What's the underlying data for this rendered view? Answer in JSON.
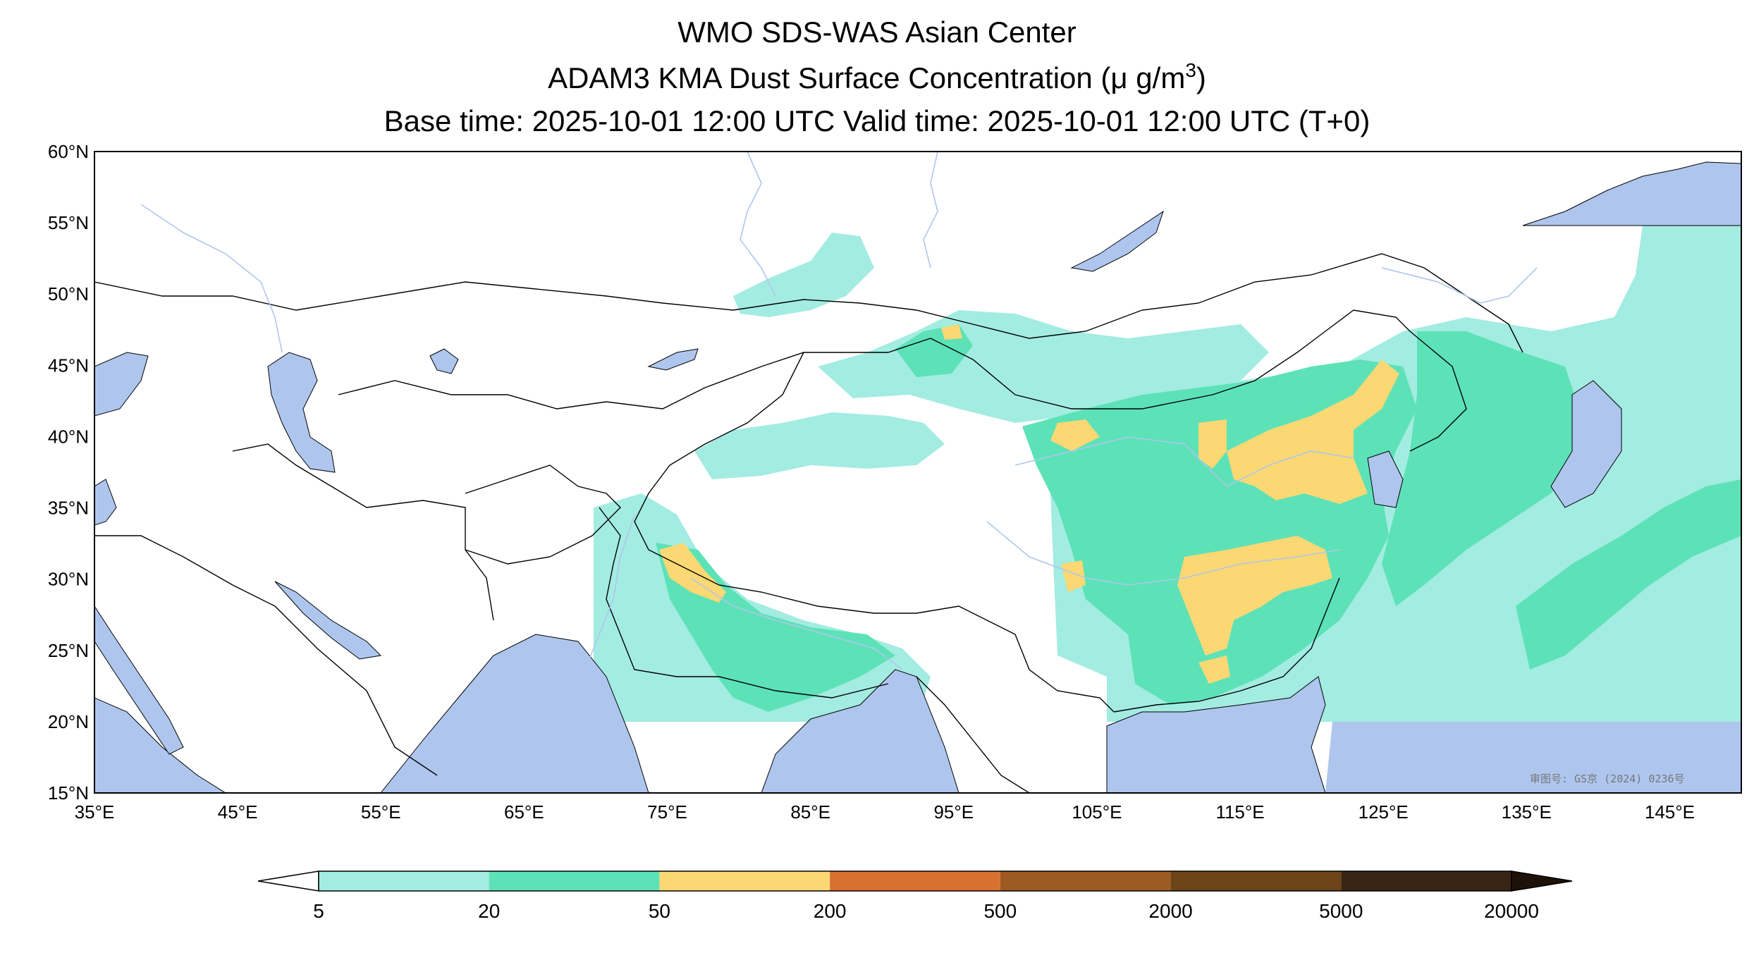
{
  "title": {
    "line1": "WMO SDS-WAS Asian Center",
    "line2_prefix": "ADAM3 KMA Dust Surface Concentration (",
    "line2_mu": "μ",
    "line2_unit": " g/m",
    "line2_sup": "3",
    "line2_suffix": ")",
    "line3": "Base time: 2025-10-01 12:00 UTC Valid time: 2025-10-01 12:00 UTC (T+0)"
  },
  "map": {
    "lon_range": [
      35,
      150
    ],
    "lat_range": [
      15,
      60
    ],
    "lat_ticks": [
      {
        "value": 60,
        "label": "60°N"
      },
      {
        "value": 55,
        "label": "55°N"
      },
      {
        "value": 50,
        "label": "50°N"
      },
      {
        "value": 45,
        "label": "45°N"
      },
      {
        "value": 40,
        "label": "40°N"
      },
      {
        "value": 35,
        "label": "35°N"
      },
      {
        "value": 30,
        "label": "30°N"
      },
      {
        "value": 25,
        "label": "25°N"
      },
      {
        "value": 20,
        "label": "20°N"
      },
      {
        "value": 15,
        "label": "15°N"
      }
    ],
    "lon_ticks": [
      {
        "value": 35,
        "label": "35°E"
      },
      {
        "value": 45,
        "label": "45°E"
      },
      {
        "value": 55,
        "label": "55°E"
      },
      {
        "value": 65,
        "label": "65°E"
      },
      {
        "value": 75,
        "label": "75°E"
      },
      {
        "value": 85,
        "label": "85°E"
      },
      {
        "value": 95,
        "label": "95°E"
      },
      {
        "value": 105,
        "label": "105°E"
      },
      {
        "value": 115,
        "label": "115°E"
      },
      {
        "value": 125,
        "label": "125°E"
      },
      {
        "value": 135,
        "label": "135°E"
      },
      {
        "value": 145,
        "label": "145°E"
      }
    ],
    "watermark": "审图号: GS京 (2024) 0236号",
    "colors": {
      "water": "#aec6ee",
      "land": "#ffffff",
      "border": "#000000",
      "river": "#aec6ee"
    }
  },
  "colorbar": {
    "levels": [
      "5",
      "20",
      "50",
      "200",
      "500",
      "2000",
      "5000",
      "20000"
    ],
    "colors": [
      "#a3ece1",
      "#5de2b7",
      "#fbd873",
      "#d87030",
      "#9d5b23",
      "#6c4418",
      "#3a2514"
    ],
    "under_color": "#ffffff",
    "over_color": "#1e1208"
  }
}
